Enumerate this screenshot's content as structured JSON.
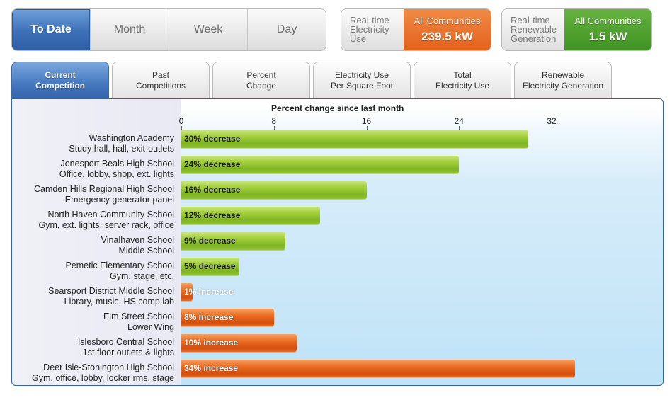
{
  "period_tabs": [
    {
      "label": "To Date",
      "active": true
    },
    {
      "label": "Month",
      "active": false
    },
    {
      "label": "Week",
      "active": false
    },
    {
      "label": "Day",
      "active": false
    }
  ],
  "realtime": {
    "electricity": {
      "label_lines": [
        "Real-time",
        "Electricity",
        "Use"
      ],
      "scope": "All Communities",
      "value": "239.5 kW",
      "color": "#e8712b"
    },
    "renewable": {
      "label_lines": [
        "Real-time",
        "Renewable",
        "Generation"
      ],
      "scope": "All Communities",
      "value": "1.5 kW",
      "color": "#4e9f2c"
    }
  },
  "tabs": [
    {
      "lines": [
        "Current",
        "Competition"
      ],
      "active": true
    },
    {
      "lines": [
        "Past",
        "Competitions"
      ],
      "active": false
    },
    {
      "lines": [
        "Percent",
        "Change"
      ],
      "active": false
    },
    {
      "lines": [
        "Electricity Use",
        "Per Square Foot"
      ],
      "active": false
    },
    {
      "lines": [
        "Total",
        "Electricity Use"
      ],
      "active": false
    },
    {
      "lines": [
        "Renewable",
        "Electricity Generation"
      ],
      "active": false
    }
  ],
  "chart_data": {
    "type": "bar",
    "orientation": "horizontal",
    "title": "Percent change since last month",
    "x_ticks": [
      0,
      8,
      16,
      24,
      32
    ],
    "xlim": [
      0,
      41.6
    ],
    "rows": [
      {
        "name": "Washington Academy",
        "detail": "Study hall, hall, exit-outlets",
        "value": 30,
        "direction": "decrease",
        "label": "30% decrease"
      },
      {
        "name": "Jonesport Beals High School",
        "detail": "Office, lobby, shop, ext. lights",
        "value": 24,
        "direction": "decrease",
        "label": "24% decrease"
      },
      {
        "name": "Camden Hills Regional High School",
        "detail": "Emergency generator panel",
        "value": 16,
        "direction": "decrease",
        "label": "16% decrease"
      },
      {
        "name": "North Haven Community School",
        "detail": "Gym, ext. lights, server rack, office",
        "value": 12,
        "direction": "decrease",
        "label": "12% decrease"
      },
      {
        "name": "Vinalhaven School",
        "detail": "Middle School",
        "value": 9,
        "direction": "decrease",
        "label": "9% decrease"
      },
      {
        "name": "Pemetic Elementary School",
        "detail": "Gym, stage, etc.",
        "value": 5,
        "direction": "decrease",
        "label": "5% decrease"
      },
      {
        "name": "Searsport District Middle School",
        "detail": "Library, music, HS comp lab",
        "value": 1,
        "direction": "increase",
        "label": "1% increase"
      },
      {
        "name": "Elm Street School",
        "detail": "Lower Wing",
        "value": 8,
        "direction": "increase",
        "label": "8% increase"
      },
      {
        "name": "Islesboro Central School",
        "detail": "1st floor outlets & lights",
        "value": 10,
        "direction": "increase",
        "label": "10% increase"
      },
      {
        "name": "Deer Isle-Stonington High School",
        "detail": "Gym, office, lobby, locker rms, stage",
        "value": 34,
        "direction": "increase",
        "label": "34% increase"
      }
    ],
    "colors": {
      "decrease": "#8dc033",
      "increase": "#e25f1c"
    }
  }
}
